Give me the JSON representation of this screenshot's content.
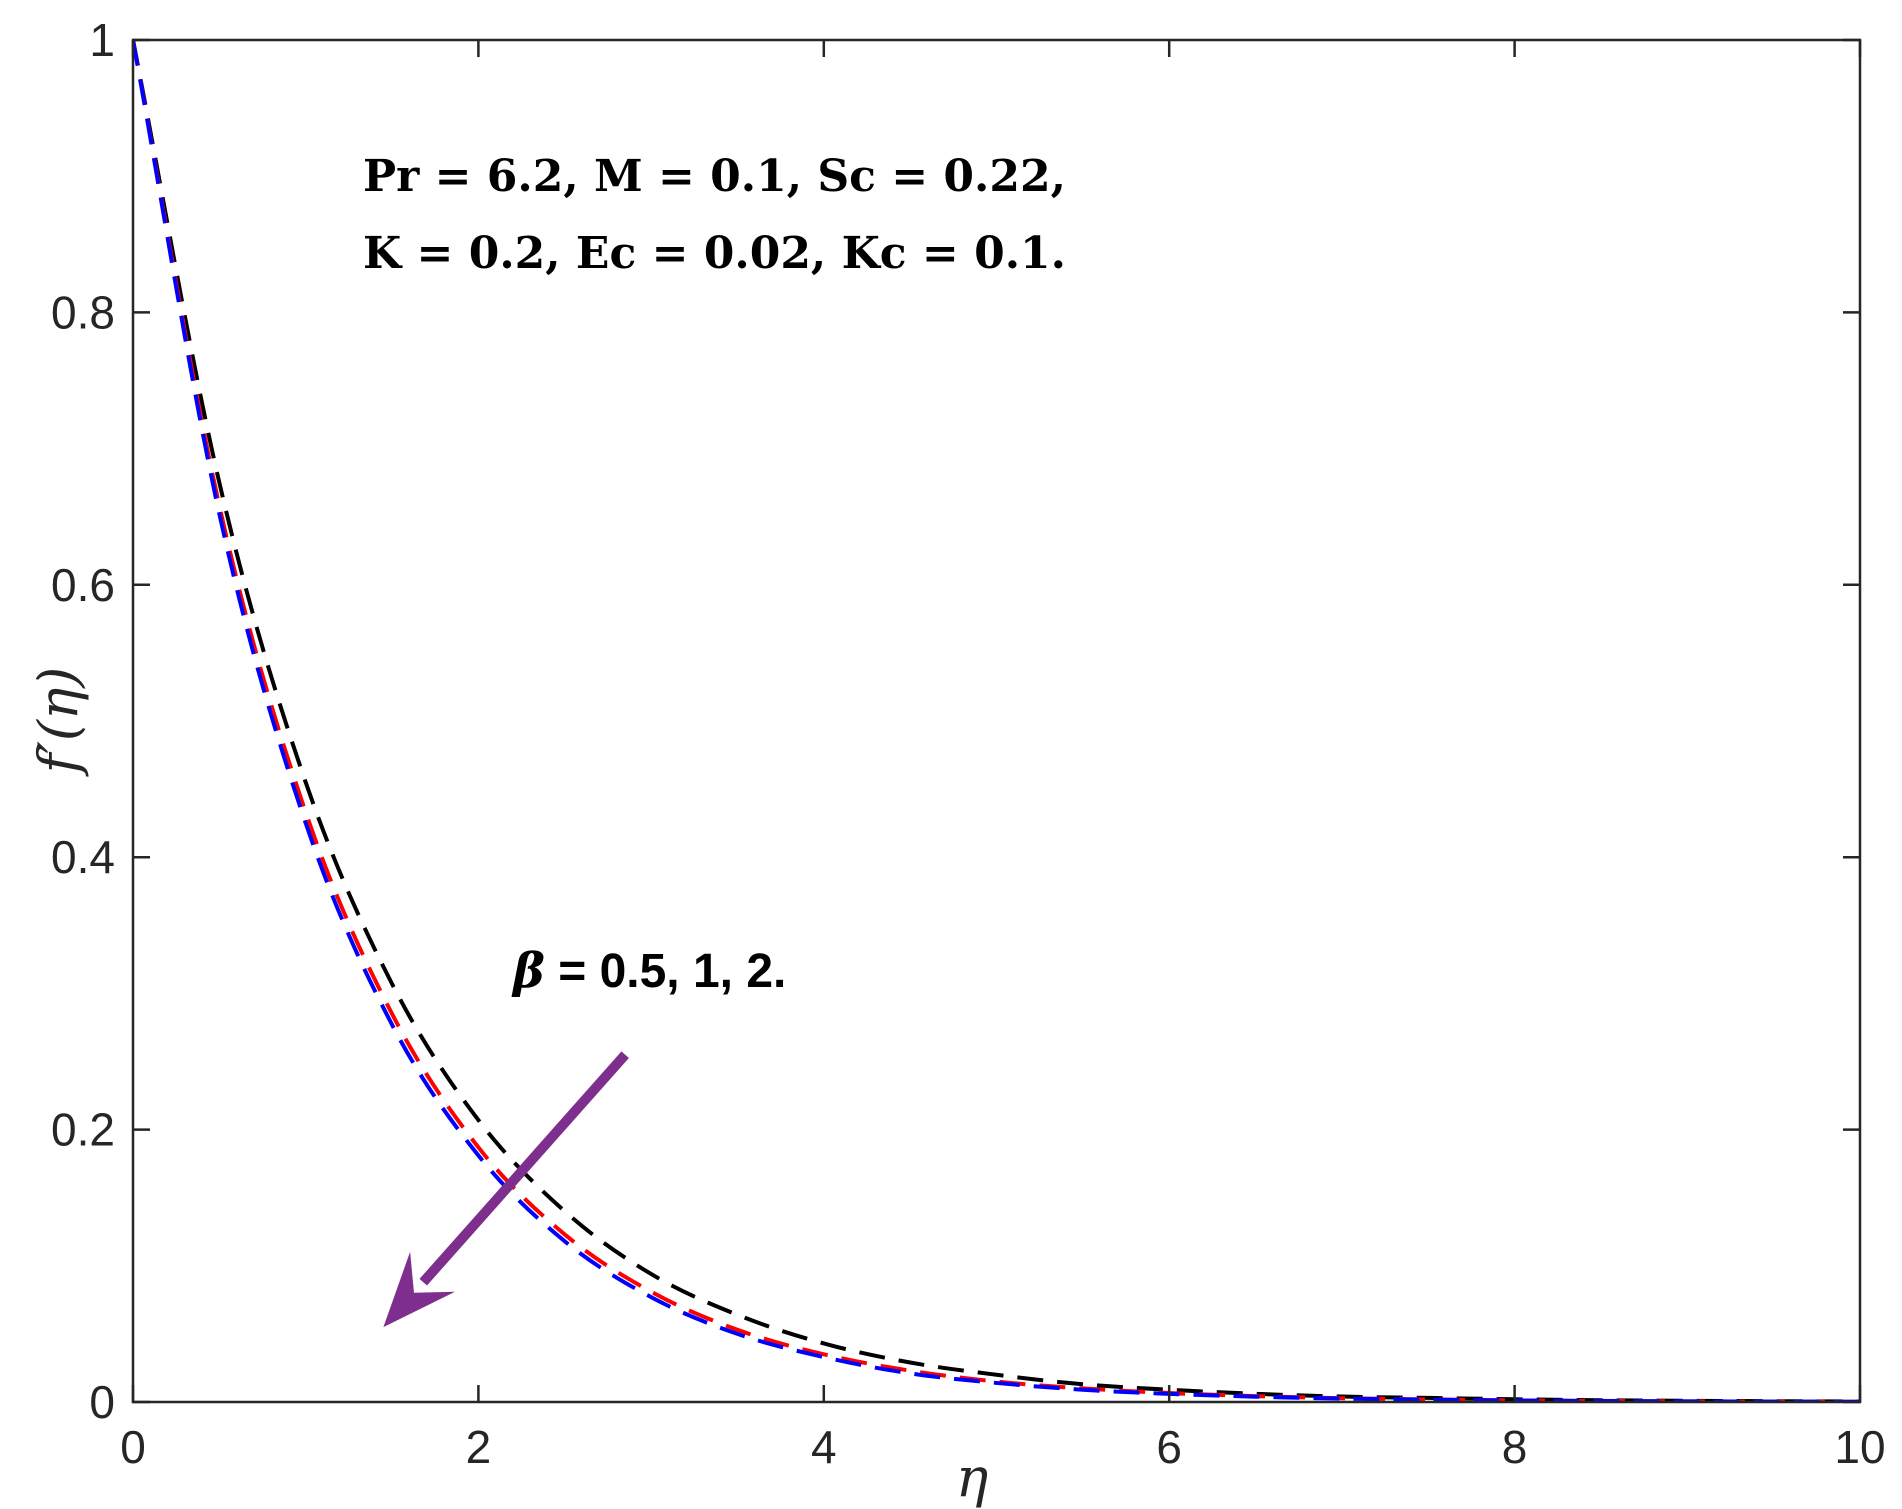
{
  "chart_data": {
    "type": "line",
    "xlabel": "η",
    "ylabel": "f′(η)",
    "xlim": [
      0,
      10
    ],
    "ylim": [
      0,
      1
    ],
    "xticks": [
      "0",
      "2",
      "4",
      "6",
      "8",
      "10"
    ],
    "yticks": [
      "0",
      "0.2",
      "0.4",
      "0.6",
      "0.8",
      "1"
    ],
    "grid": false,
    "box": true,
    "annotations": {
      "params_line1": "Pr = 6.2, M = 0.1, Sc = 0.22,",
      "params_line2": "K = 0.2, Ec = 0.02, Kc = 0.1.",
      "beta_symbol": "β",
      "beta_values": " = 0.5, 1, 2."
    },
    "arrow": {
      "from": [
        2.85,
        0.255
      ],
      "to": [
        1.45,
        0.055
      ],
      "color": "#7E2F8E"
    },
    "series": [
      {
        "color": "#000000",
        "dash": "dashed",
        "x": [
          0,
          0.5,
          1,
          1.5,
          2,
          2.5,
          3,
          3.5,
          4,
          4.5,
          5,
          5.5,
          6,
          6.5,
          7,
          7.5,
          8,
          8.5,
          9,
          9.5,
          10
        ],
        "y": [
          1,
          0.675,
          0.455,
          0.307,
          0.207,
          0.14,
          0.094,
          0.064,
          0.043,
          0.029,
          0.02,
          0.013,
          0.009,
          0.006,
          0.004,
          0.003,
          0.002,
          0.0013,
          0.0009,
          0.0006,
          0.0004
        ]
      },
      {
        "color": "#FF0000",
        "dash": "dashed",
        "x": [
          0,
          0.5,
          1,
          1.5,
          2,
          2.5,
          3,
          3.5,
          4,
          4.5,
          5,
          5.5,
          6,
          6.5,
          7,
          7.5,
          8,
          8.5,
          9,
          9.5,
          10
        ],
        "y": [
          1,
          0.658,
          0.433,
          0.285,
          0.187,
          0.123,
          0.081,
          0.053,
          0.035,
          0.023,
          0.015,
          0.01,
          0.0066,
          0.0043,
          0.0028,
          0.0019,
          0.0012,
          0.0008,
          0.0005,
          0.0003,
          0.0002
        ]
      },
      {
        "color": "#0000FF",
        "dash": "dashed",
        "x": [
          0,
          0.5,
          1,
          1.5,
          2,
          2.5,
          3,
          3.5,
          4,
          4.5,
          5,
          5.5,
          6,
          6.5,
          7,
          7.5,
          8,
          8.5,
          9,
          9.5,
          10
        ],
        "y": [
          1,
          0.652,
          0.425,
          0.277,
          0.181,
          0.118,
          0.077,
          0.05,
          0.033,
          0.021,
          0.014,
          0.009,
          0.006,
          0.0039,
          0.0025,
          0.0017,
          0.0011,
          0.0007,
          0.0005,
          0.0003,
          0.0002
        ]
      }
    ]
  }
}
